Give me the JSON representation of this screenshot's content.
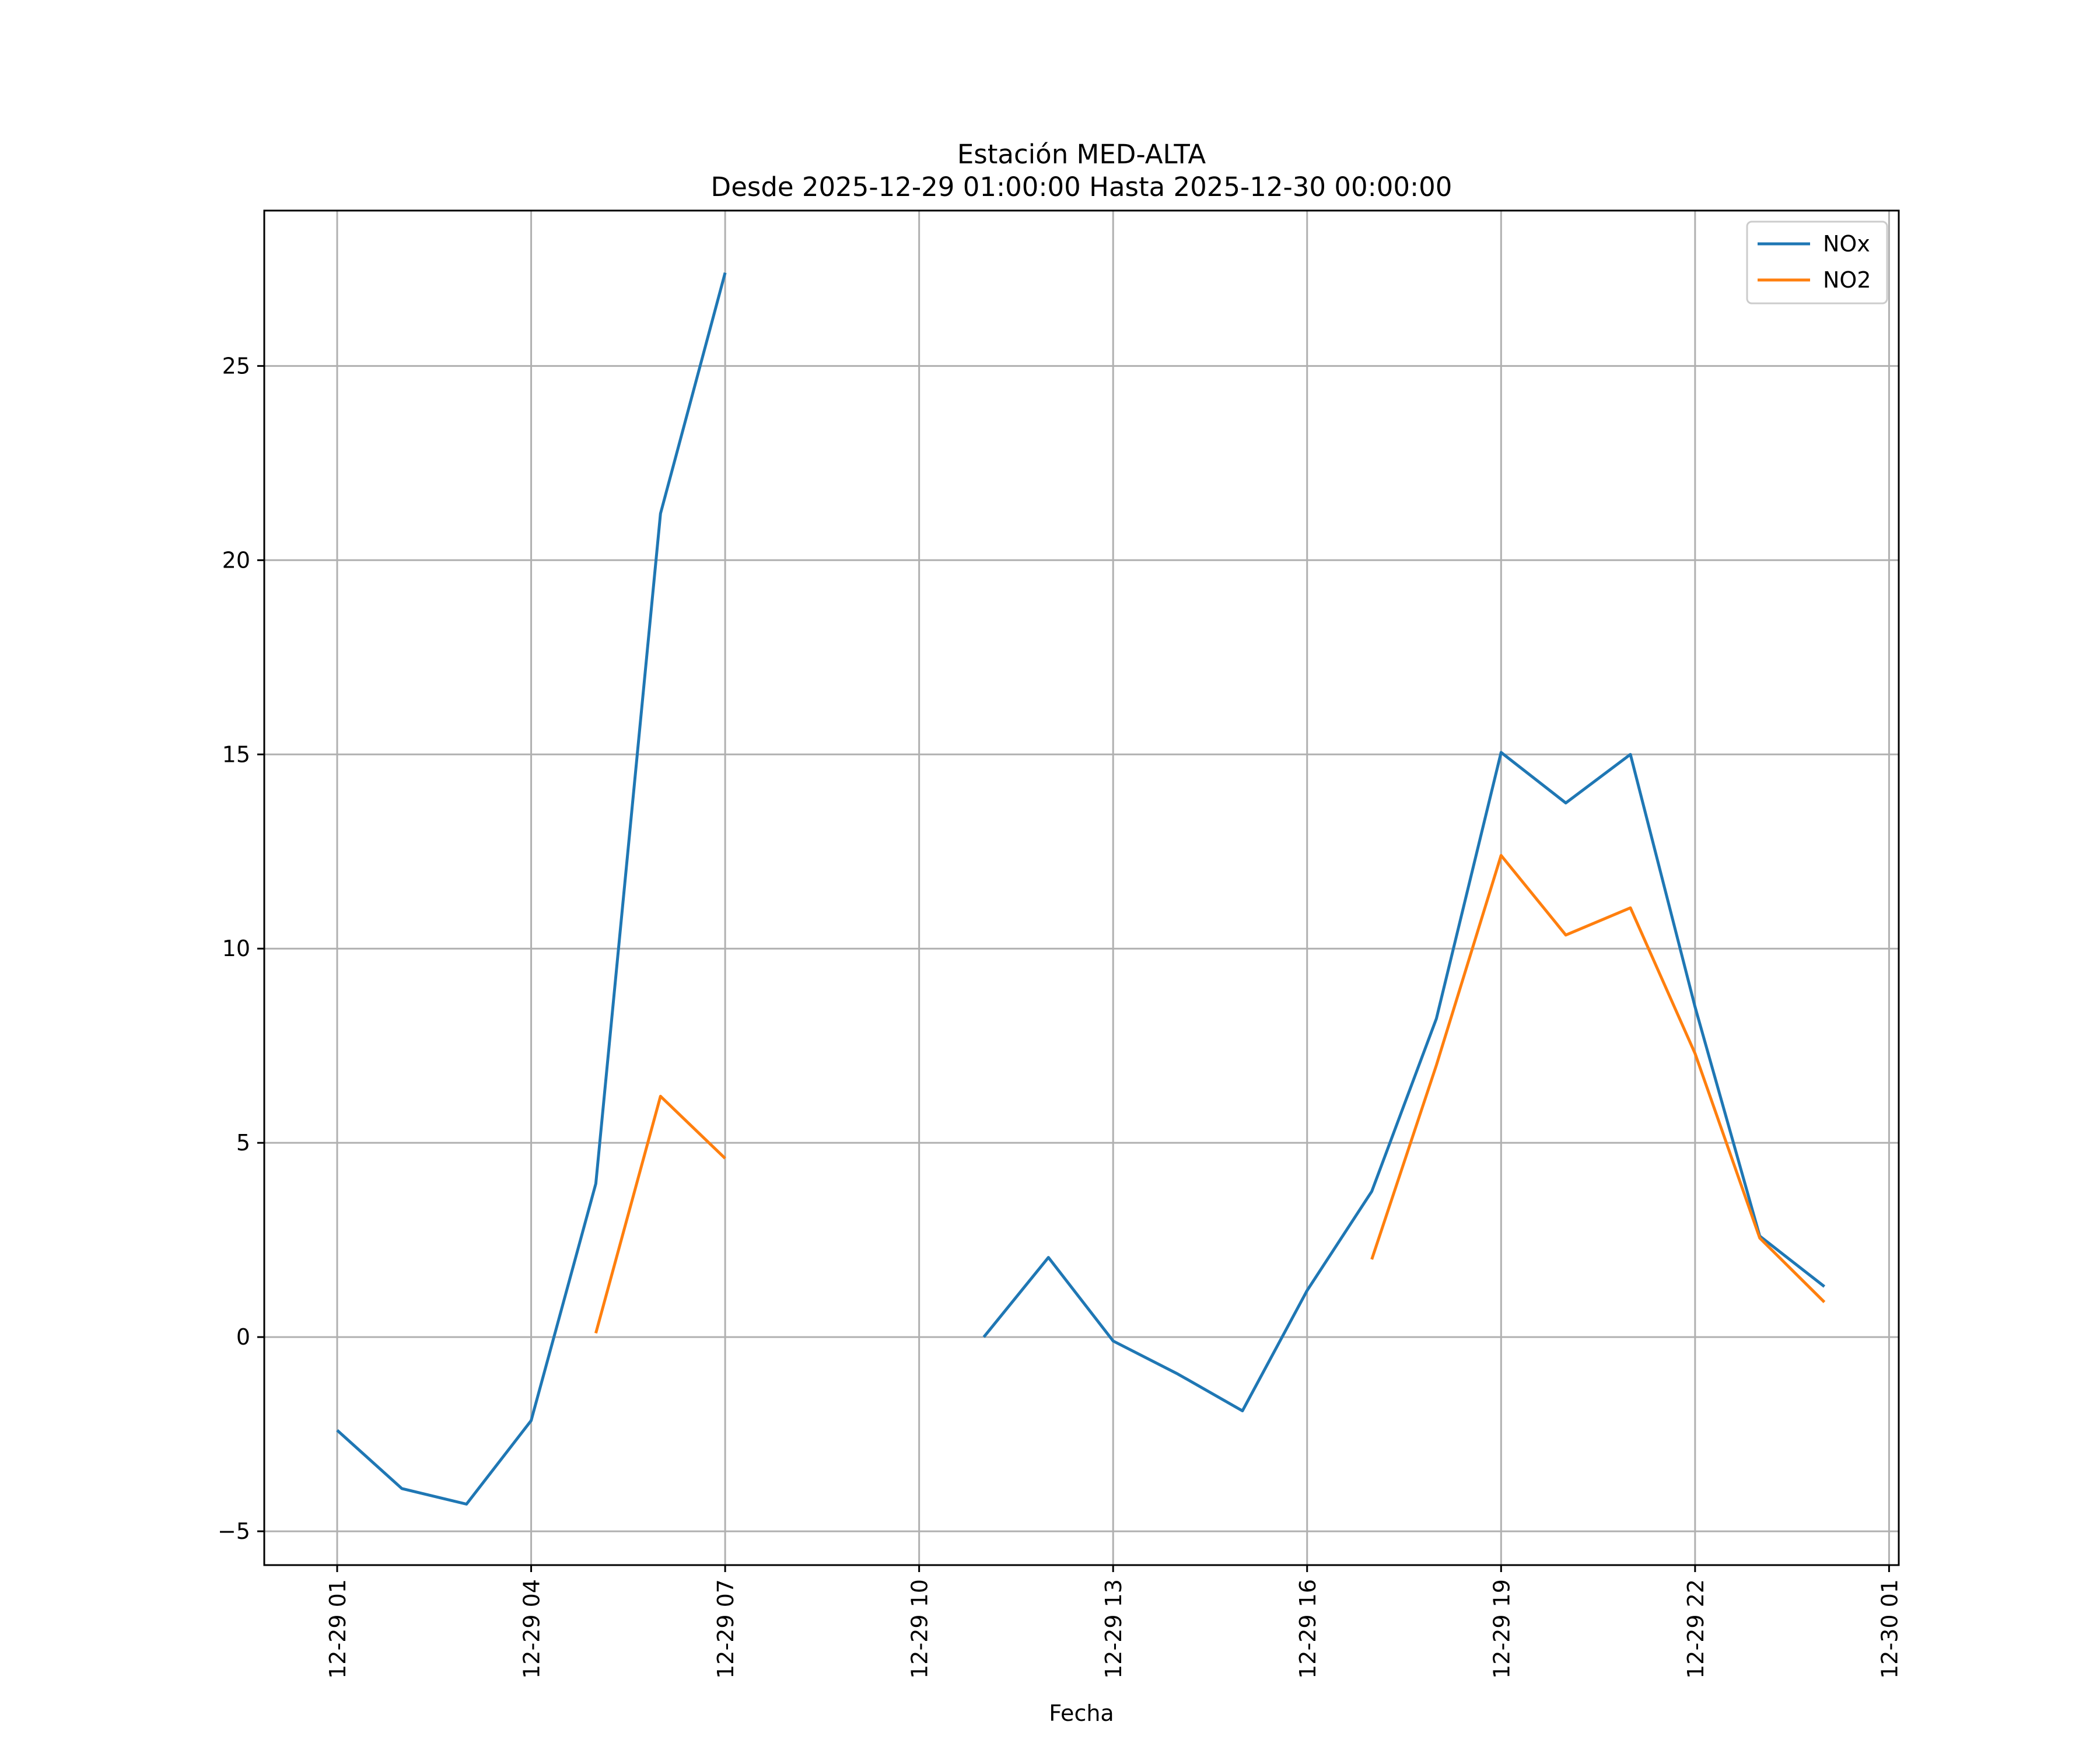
{
  "chart_data": {
    "type": "line",
    "title": "Estación MED-ALTA",
    "subtitle": "Desde 2025-12-29 01:00:00 Hasta 2025-12-30 00:00:00",
    "xlabel": "Fecha",
    "ylabel": "",
    "x": [
      "2025-12-29 01:00",
      "2025-12-29 02:00",
      "2025-12-29 03:00",
      "2025-12-29 04:00",
      "2025-12-29 05:00",
      "2025-12-29 06:00",
      "2025-12-29 07:00",
      "2025-12-29 08:00",
      "2025-12-29 09:00",
      "2025-12-29 10:00",
      "2025-12-29 11:00",
      "2025-12-29 12:00",
      "2025-12-29 13:00",
      "2025-12-29 14:00",
      "2025-12-29 15:00",
      "2025-12-29 16:00",
      "2025-12-29 17:00",
      "2025-12-29 18:00",
      "2025-12-29 19:00",
      "2025-12-29 20:00",
      "2025-12-29 21:00",
      "2025-12-29 22:00",
      "2025-12-29 23:00",
      "2025-12-30 00:00"
    ],
    "series": [
      {
        "name": "NOx",
        "color": "#1f77b4",
        "values": [
          -2.4,
          -3.9,
          -4.3,
          -2.15,
          3.95,
          21.2,
          27.4,
          null,
          null,
          null,
          0.0,
          2.05,
          -0.1,
          -0.95,
          -1.9,
          1.2,
          3.75,
          8.2,
          15.05,
          13.75,
          15.0,
          8.5,
          2.6,
          1.3
        ]
      },
      {
        "name": "NO2",
        "color": "#ff7f0e",
        "values": [
          null,
          null,
          null,
          null,
          0.1,
          6.2,
          4.6,
          null,
          null,
          null,
          null,
          null,
          null,
          null,
          null,
          null,
          2.0,
          7.0,
          12.4,
          10.35,
          11.05,
          7.3,
          2.55,
          0.9
        ]
      }
    ],
    "xtick_labels": [
      "12-29 01",
      "12-29 04",
      "12-29 07",
      "12-29 10",
      "12-29 13",
      "12-29 16",
      "12-29 19",
      "12-29 22",
      "12-30 01"
    ],
    "xtick_index": [
      0,
      3,
      6,
      9,
      12,
      15,
      18,
      21,
      24
    ],
    "yticks": [
      -5,
      0,
      5,
      10,
      15,
      20,
      25
    ],
    "ytick_labels": [
      "−5",
      "0",
      "5",
      "10",
      "15",
      "20",
      "25"
    ],
    "ylim": [
      -5.87,
      29.0
    ],
    "xlim_hours": [
      -1.15,
      24.15
    ],
    "grid": true,
    "legend": "top-right"
  }
}
